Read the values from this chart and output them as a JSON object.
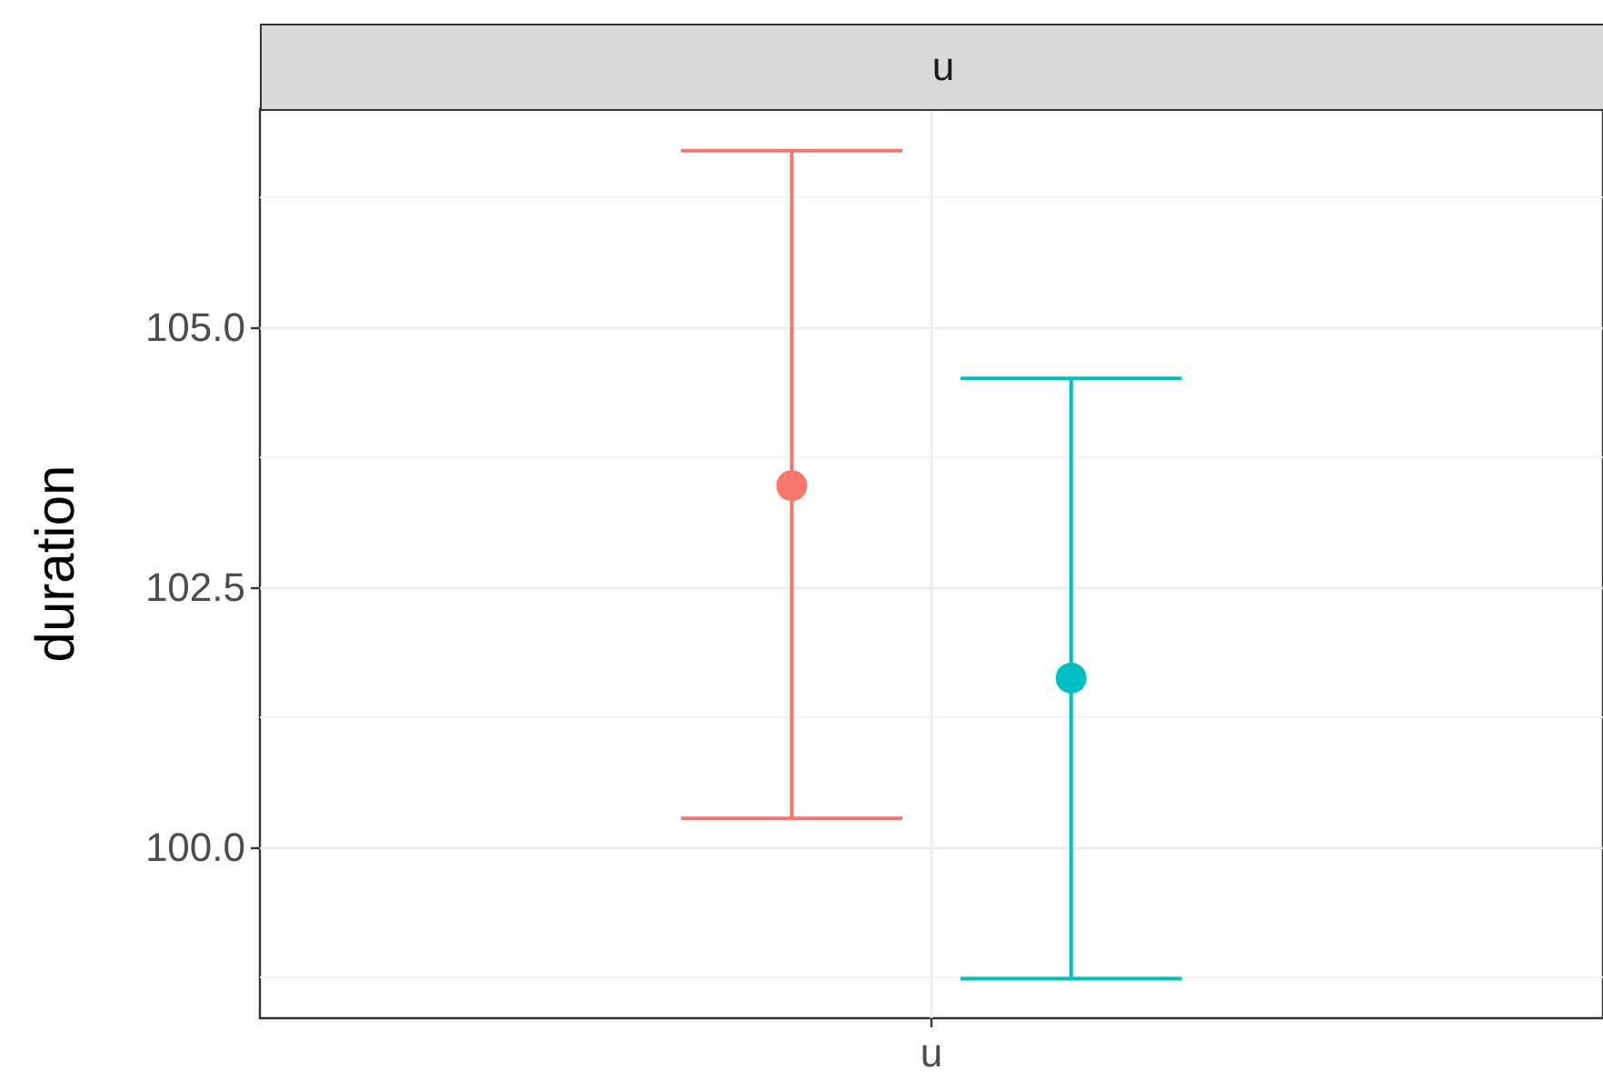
{
  "chart_data": {
    "type": "scatter",
    "title": "u",
    "ylabel": "duration",
    "categories": [
      "u"
    ],
    "series": [
      {
        "color": "#f8766d",
        "values": [
          103.48
        ],
        "errors": [
          [
            100.28,
            106.7
          ]
        ]
      },
      {
        "color": "#00bfc4",
        "values": [
          101.63
        ],
        "errors": [
          [
            98.74,
            104.51
          ]
        ]
      }
    ],
    "ylim": [
      98.36,
      107.1
    ],
    "yticks": [
      {
        "value": 100,
        "label": "100.0"
      },
      102.5,
      {
        "value": 105,
        "label": "105.0"
      }
    ],
    "grid": true,
    "marker": "circle"
  }
}
